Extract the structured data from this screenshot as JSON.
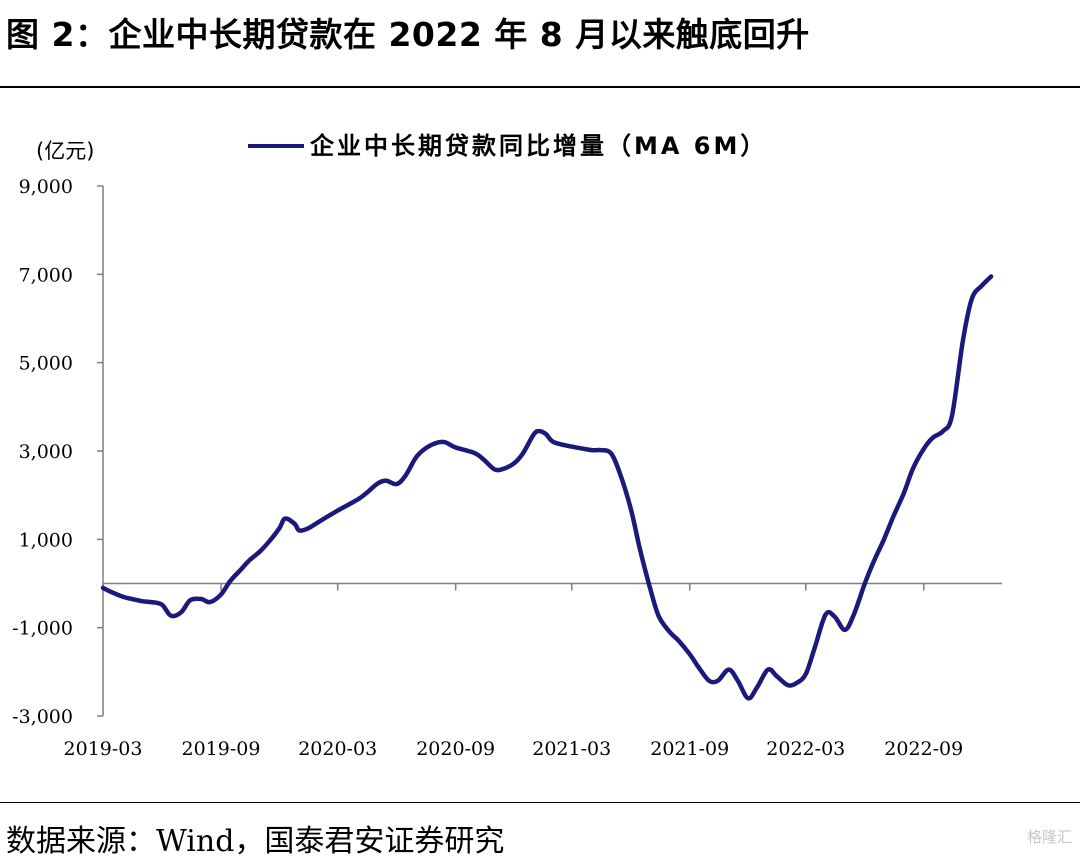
{
  "header": {
    "title": "图 2：企业中长期贷款在 2022 年 8 月以来触底回升"
  },
  "footer": {
    "source": "数据来源：Wind，国泰君安证券研究",
    "watermark": "格隆汇"
  },
  "colors": {
    "series": "#1b1a7a",
    "axis": "#7f7f7f",
    "text": "#000000"
  },
  "chart_data": {
    "type": "line",
    "title": "",
    "ylabel": "(亿元)",
    "xlabel": "",
    "ylim": [
      -3000,
      9000
    ],
    "yticks": [
      -3000,
      -1000,
      1000,
      3000,
      5000,
      7000,
      9000
    ],
    "ytick_labels": [
      "-3,000",
      "-1,000",
      "1,000",
      "3,000",
      "5,000",
      "7,000",
      "9,000"
    ],
    "xtick_labels": [
      "2019-03",
      "2019-09",
      "2020-03",
      "2020-09",
      "2021-03",
      "2021-09",
      "2022-03",
      "2022-09"
    ],
    "x_range": [
      "2019-03",
      "2023-01"
    ],
    "legend": {
      "position": "top",
      "label": "企业中长期贷款同比增量（MA 6M）"
    },
    "series": [
      {
        "name": "企业中长期贷款同比增量（MA 6M）",
        "points": [
          [
            "2019-03-01",
            -100
          ],
          [
            "2019-03-15",
            -200
          ],
          [
            "2019-04-01",
            -300
          ],
          [
            "2019-04-15",
            -350
          ],
          [
            "2019-05-01",
            -400
          ],
          [
            "2019-05-15",
            -420
          ],
          [
            "2019-06-01",
            -480
          ],
          [
            "2019-06-15",
            -730
          ],
          [
            "2019-07-01",
            -650
          ],
          [
            "2019-07-15",
            -380
          ],
          [
            "2019-08-01",
            -350
          ],
          [
            "2019-08-15",
            -420
          ],
          [
            "2019-09-01",
            -250
          ],
          [
            "2019-09-15",
            50
          ],
          [
            "2019-10-01",
            300
          ],
          [
            "2019-10-15",
            520
          ],
          [
            "2019-11-01",
            730
          ],
          [
            "2019-11-15",
            950
          ],
          [
            "2019-12-01",
            1250
          ],
          [
            "2019-12-10",
            1470
          ],
          [
            "2019-12-25",
            1350
          ],
          [
            "2020-01-01",
            1200
          ],
          [
            "2020-01-15",
            1250
          ],
          [
            "2020-02-01",
            1400
          ],
          [
            "2020-03-01",
            1650
          ],
          [
            "2020-04-01",
            1900
          ],
          [
            "2020-04-15",
            2050
          ],
          [
            "2020-05-01",
            2250
          ],
          [
            "2020-05-15",
            2330
          ],
          [
            "2020-06-01",
            2250
          ],
          [
            "2020-06-15",
            2450
          ],
          [
            "2020-07-01",
            2850
          ],
          [
            "2020-07-15",
            3050
          ],
          [
            "2020-08-01",
            3180
          ],
          [
            "2020-08-15",
            3200
          ],
          [
            "2020-09-01",
            3080
          ],
          [
            "2020-10-01",
            2950
          ],
          [
            "2020-10-15",
            2800
          ],
          [
            "2020-11-01",
            2580
          ],
          [
            "2020-11-15",
            2600
          ],
          [
            "2020-12-01",
            2720
          ],
          [
            "2020-12-15",
            2950
          ],
          [
            "2021-01-01",
            3380
          ],
          [
            "2021-01-10",
            3450
          ],
          [
            "2021-01-20",
            3380
          ],
          [
            "2021-02-01",
            3200
          ],
          [
            "2021-03-01",
            3100
          ],
          [
            "2021-04-01",
            3020
          ],
          [
            "2021-04-15",
            3020
          ],
          [
            "2021-05-01",
            2950
          ],
          [
            "2021-05-15",
            2500
          ],
          [
            "2021-06-01",
            1700
          ],
          [
            "2021-06-15",
            800
          ],
          [
            "2021-07-01",
            -100
          ],
          [
            "2021-07-15",
            -750
          ],
          [
            "2021-08-01",
            -1100
          ],
          [
            "2021-08-15",
            -1300
          ],
          [
            "2021-09-01",
            -1600
          ],
          [
            "2021-09-15",
            -1900
          ],
          [
            "2021-10-01",
            -2200
          ],
          [
            "2021-10-15",
            -2200
          ],
          [
            "2021-11-01",
            -1950
          ],
          [
            "2021-11-15",
            -2200
          ],
          [
            "2021-12-01",
            -2600
          ],
          [
            "2021-12-15",
            -2350
          ],
          [
            "2022-01-01",
            -1950
          ],
          [
            "2022-01-15",
            -2100
          ],
          [
            "2022-02-01",
            -2300
          ],
          [
            "2022-02-15",
            -2250
          ],
          [
            "2022-03-01",
            -2050
          ],
          [
            "2022-03-15",
            -1450
          ],
          [
            "2022-04-01",
            -700
          ],
          [
            "2022-04-15",
            -750
          ],
          [
            "2022-05-01",
            -1050
          ],
          [
            "2022-05-15",
            -700
          ],
          [
            "2022-06-01",
            0
          ],
          [
            "2022-06-15",
            500
          ],
          [
            "2022-07-01",
            1000
          ],
          [
            "2022-07-15",
            1500
          ],
          [
            "2022-08-01",
            2050
          ],
          [
            "2022-08-15",
            2600
          ],
          [
            "2022-09-01",
            3050
          ],
          [
            "2022-09-15",
            3300
          ],
          [
            "2022-10-01",
            3450
          ],
          [
            "2022-10-15",
            3800
          ],
          [
            "2022-11-01",
            5500
          ],
          [
            "2022-11-15",
            6450
          ],
          [
            "2022-12-01",
            6750
          ],
          [
            "2022-12-15",
            6950
          ]
        ]
      }
    ]
  }
}
